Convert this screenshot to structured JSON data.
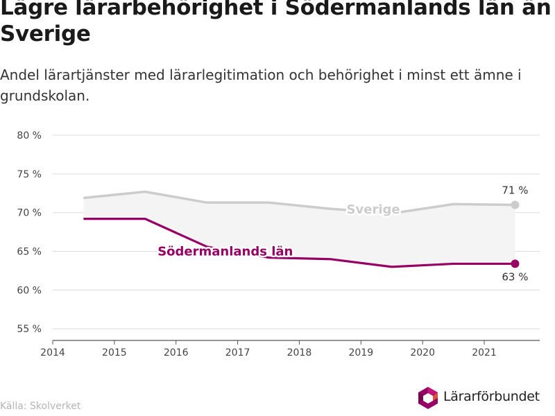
{
  "header": {
    "title_lines": [
      "Lägre lärarbehörighet i Södermanlands län än i",
      "Sverige"
    ],
    "subtitle_lines": [
      "Andel lärartjänster med lärarlegitimation och behörighet i minst ett ämne i",
      "grundskolan."
    ]
  },
  "chart_data": {
    "type": "line",
    "title": "Lägre lärarbehörighet i Södermanlands län än i Sverige",
    "subtitle": "Andel lärartjänster med lärarlegitimation och behörighet i minst ett ämne i grundskolan.",
    "x_ticks": [
      2014,
      2015,
      2016,
      2017,
      2018,
      2019,
      2020,
      2021
    ],
    "y_ticks": [
      55,
      60,
      65,
      70,
      75,
      80
    ],
    "y_tick_labels": [
      "55 %",
      "60 %",
      "65 %",
      "70 %",
      "75 %",
      "80 %"
    ],
    "xlim": [
      2014,
      2021.9
    ],
    "ylim": [
      53.5,
      80
    ],
    "grid": true,
    "legend": "inline labels on lines",
    "series": [
      {
        "name": "Sverige",
        "color": "#cccccc",
        "x": [
          2014.5,
          2015.5,
          2016.5,
          2017.5,
          2018.5,
          2019.5,
          2020.5,
          2021.5
        ],
        "y": [
          71.9,
          72.7,
          71.3,
          71.3,
          70.5,
          69.9,
          71.1,
          71.0
        ],
        "end_label": "71 %"
      },
      {
        "name": "Södermanlands län",
        "color": "#960065",
        "x": [
          2014.5,
          2015.5,
          2016.5,
          2017.5,
          2018.5,
          2019.5,
          2020.5,
          2021.5
        ],
        "y": [
          69.2,
          69.2,
          65.6,
          64.2,
          64.0,
          63.0,
          63.4,
          63.4
        ],
        "end_label": "63 %"
      }
    ]
  },
  "footer": {
    "source": "Källa: Skolverket",
    "logo_text": "Lärarförbundet"
  }
}
